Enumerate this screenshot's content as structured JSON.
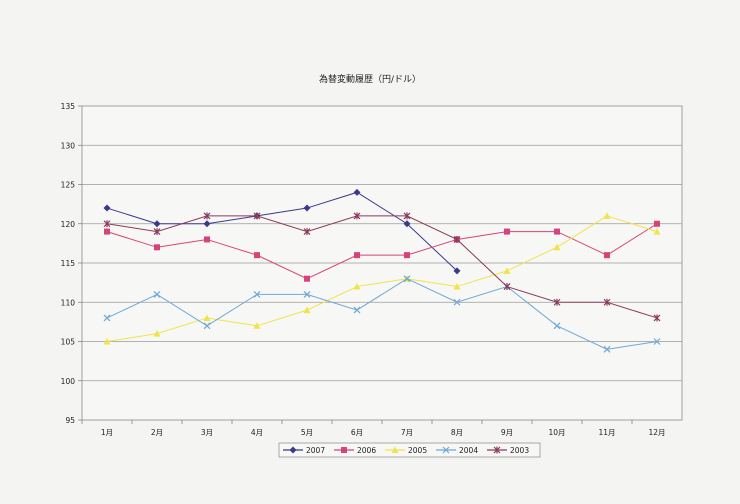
{
  "chart_data": {
    "type": "line",
    "title": "為替変動履歴（円/ドル）",
    "xlabel": "",
    "ylabel": "",
    "categories": [
      "1月",
      "2月",
      "3月",
      "4月",
      "5月",
      "6月",
      "7月",
      "8月",
      "9月",
      "10月",
      "11月",
      "12月"
    ],
    "ylim": [
      95,
      135
    ],
    "yticks": [
      95,
      100,
      105,
      110,
      115,
      120,
      125,
      130,
      135
    ],
    "grid": true,
    "legend_position": "bottom",
    "series": [
      {
        "name": "2007",
        "color": "#3a3a8c",
        "marker": "diamond",
        "values": [
          122,
          120,
          120,
          121,
          122,
          124,
          120,
          114,
          null,
          null,
          null,
          null
        ]
      },
      {
        "name": "2006",
        "color": "#d8427a",
        "marker": "square",
        "values": [
          119,
          117,
          118,
          116,
          113,
          116,
          116,
          118,
          119,
          119,
          116,
          120
        ]
      },
      {
        "name": "2005",
        "color": "#f0e44a",
        "marker": "triangle",
        "values": [
          105,
          106,
          108,
          107,
          109,
          112,
          113,
          112,
          114,
          117,
          121,
          119
        ]
      },
      {
        "name": "2004",
        "color": "#6fa8d6",
        "marker": "x",
        "values": [
          108,
          111,
          107,
          111,
          111,
          109,
          113,
          110,
          112,
          107,
          104,
          105
        ]
      },
      {
        "name": "2003",
        "color": "#8c3a5c",
        "marker": "star",
        "values": [
          120,
          119,
          121,
          121,
          119,
          121,
          121,
          118,
          112,
          110,
          110,
          108
        ]
      }
    ]
  }
}
